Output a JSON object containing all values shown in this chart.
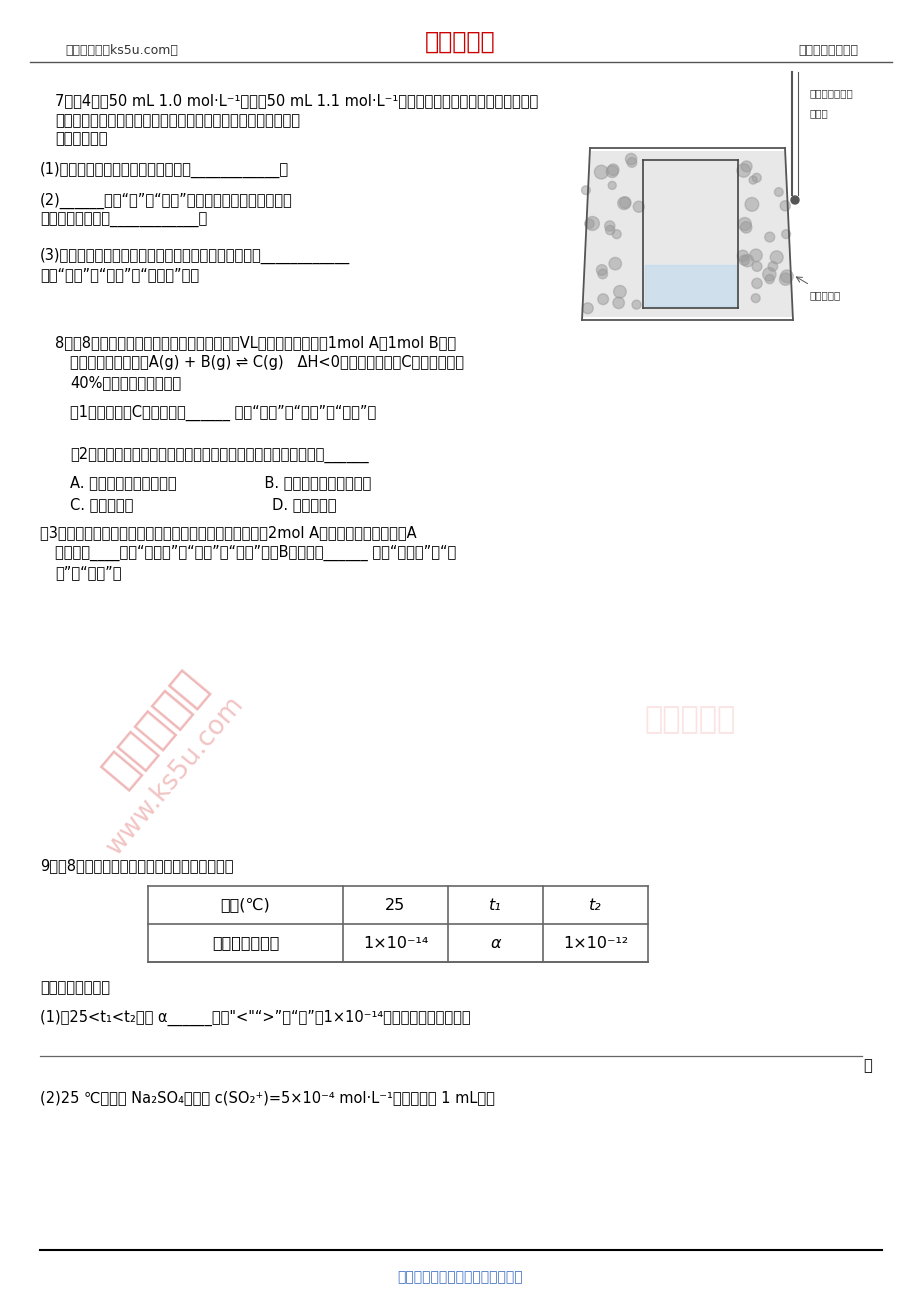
{
  "bg_color": "#ffffff",
  "header_left": "高考资源网（ks5u.com）",
  "header_center": "高考资源网",
  "header_right": "您身边的高考专家",
  "header_center_color": "#cc0000",
  "footer_text": "高考资源网版权所有，侵权必究！",
  "footer_color": "#4472c4",
  "q9_sub1": "(1)苦25<t₁<t₂，则 α______（填\"<\"\">\"或\"＝\"）1×10⁻¹⁴，作出此判断的理由是",
  "q9_sub2": "(2)25 ℃下，某 Na₂SO₄溶液中 c(SO₂⁺)=5×10⁻⁴ mol·L⁻¹，取该溶液 1 mL，加"
}
